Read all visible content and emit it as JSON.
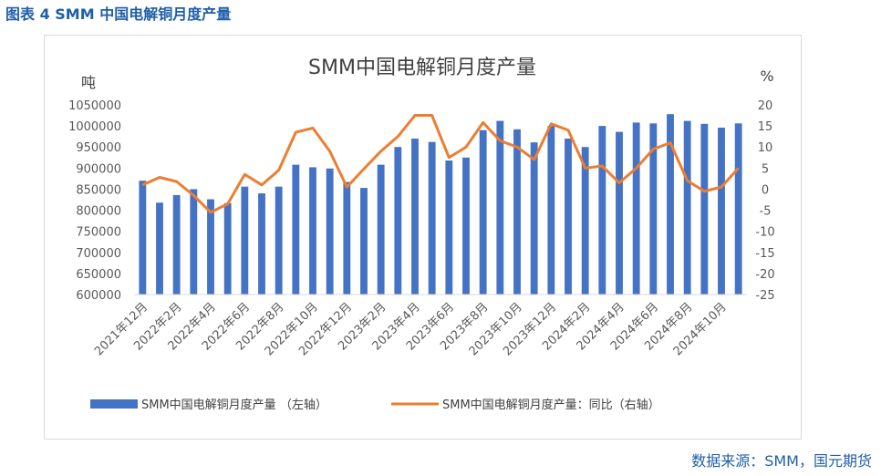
{
  "caption": "图表 4 SMM 中国电解铜月度产量",
  "source": "数据来源：SMM，国元期货",
  "chart_data": {
    "type": "bar",
    "title": "SMM中国电解铜月度产量",
    "y_left_unit": "吨",
    "y_right_unit": "%",
    "y_left_lim": [
      600000,
      1050000
    ],
    "y_left_ticks": [
      "1050000",
      "1000000",
      "950000",
      "900000",
      "850000",
      "800000",
      "750000",
      "700000",
      "650000",
      "600000"
    ],
    "y_right_lim": [
      -25,
      20
    ],
    "y_right_ticks": [
      "20",
      "15",
      "10",
      "5",
      "0",
      "-5",
      "-10",
      "-15",
      "-20",
      "-25"
    ],
    "categories": [
      "2021年12月",
      "2022年1月",
      "2022年2月",
      "2022年3月",
      "2022年4月",
      "2022年5月",
      "2022年6月",
      "2022年7月",
      "2022年8月",
      "2022年9月",
      "2022年10月",
      "2022年11月",
      "2022年12月",
      "2023年1月",
      "2023年2月",
      "2023年3月",
      "2023年4月",
      "2023年5月",
      "2023年6月",
      "2023年7月",
      "2023年8月",
      "2023年9月",
      "2023年10月",
      "2023年11月",
      "2023年12月",
      "2024年1月",
      "2024年2月",
      "2024年3月",
      "2024年4月",
      "2024年5月",
      "2024年6月",
      "2024年7月",
      "2024年8月",
      "2024年9月",
      "2024年10月",
      "2024年11月"
    ],
    "x_tick_labels": [
      "2021年12月",
      "2022年2月",
      "2022年4月",
      "2022年6月",
      "2022年8月",
      "2022年10月",
      "2022年12月",
      "2023年2月",
      "2023年4月",
      "2023年6月",
      "2023年8月",
      "2023年10月",
      "2023年12月",
      "2024年2月",
      "2024年4月",
      "2024年6月",
      "2024年8月",
      "2024年10月"
    ],
    "series": [
      {
        "name": "SMM中国电解铜月度产量 （左轴）",
        "type": "bar",
        "axis": "left",
        "color": "#4472c4",
        "values": [
          870000,
          818000,
          836000,
          850000,
          826000,
          817000,
          856000,
          840000,
          856000,
          908000,
          902000,
          899000,
          867000,
          853000,
          908000,
          950000,
          970000,
          962000,
          918000,
          925000,
          990000,
          1012000,
          992000,
          961000,
          1000000,
          970000,
          950000,
          1000000,
          986000,
          1008000,
          1006000,
          1028000,
          1012000,
          1005000,
          996000,
          1006000
        ]
      },
      {
        "name": "SMM中国电解铜月度产量：同比（右轴）",
        "type": "line",
        "axis": "right",
        "color": "#ed7d31",
        "values": [
          1.0,
          2.8,
          1.8,
          -1.5,
          -5.5,
          -3.5,
          3.5,
          1.0,
          4.5,
          13.5,
          14.5,
          9.0,
          0.5,
          4.8,
          9.0,
          12.5,
          17.5,
          17.5,
          7.5,
          10.0,
          15.8,
          11.5,
          10.0,
          7.0,
          15.5,
          14.0,
          5.0,
          5.5,
          1.5,
          5.0,
          9.5,
          11.0,
          2.0,
          -0.5,
          0.5,
          5.0
        ]
      }
    ],
    "legend_position": "bottom",
    "grid": false
  }
}
